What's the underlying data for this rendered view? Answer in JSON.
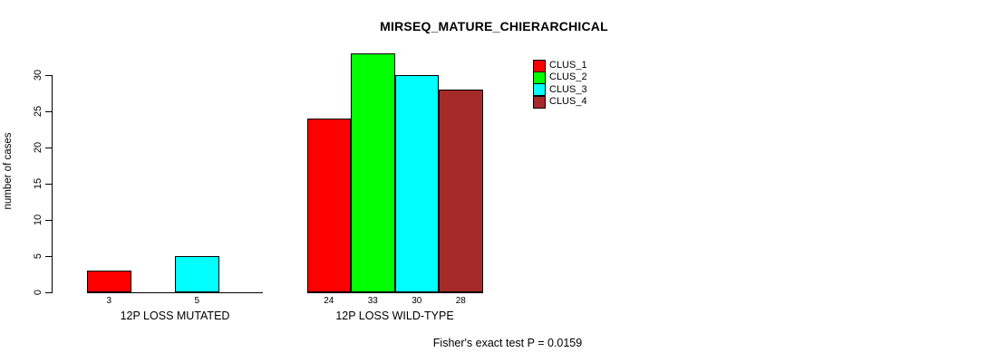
{
  "chart_data": {
    "type": "bar",
    "title": "MIRSEQ_MATURE_CHIERARCHICAL",
    "ylabel": "number of cases",
    "xlabel": "",
    "ylim": [
      0,
      33
    ],
    "yticks": [
      0,
      5,
      10,
      15,
      20,
      25,
      30
    ],
    "grid": false,
    "legend_position": "top-right",
    "categories": [
      "12P LOSS MUTATED",
      "12P LOSS WILD-TYPE"
    ],
    "series": [
      {
        "name": "CLUS_1",
        "color": "#FF0000",
        "values": [
          3,
          24
        ]
      },
      {
        "name": "CLUS_2",
        "color": "#00FF00",
        "values": [
          0,
          33
        ]
      },
      {
        "name": "CLUS_3",
        "color": "#00FFFF",
        "values": [
          5,
          30
        ]
      },
      {
        "name": "CLUS_4",
        "color": "#A52A2A",
        "values": [
          0,
          28
        ]
      }
    ],
    "bar_value_labels": [
      3,
      5,
      24,
      33,
      30,
      28
    ],
    "value_labels_shown_for_zero": false,
    "annotation": "Fisher's exact test P = 0.0159",
    "axis_color": "#000000",
    "background_color": "#FFFFFF"
  }
}
